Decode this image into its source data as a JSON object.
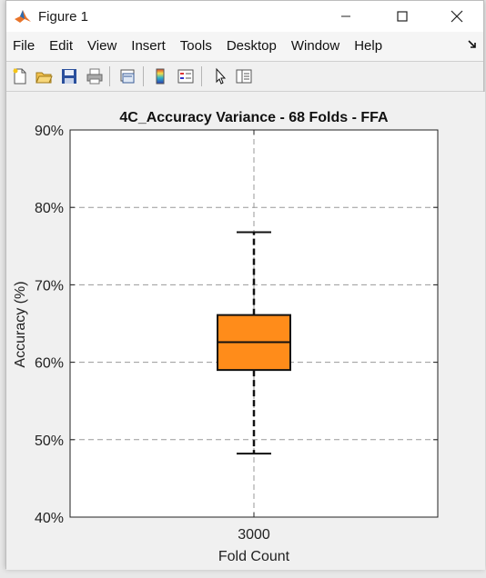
{
  "window": {
    "title": "Figure 1"
  },
  "menu": {
    "items": [
      "File",
      "Edit",
      "View",
      "Insert",
      "Tools",
      "Desktop",
      "Window",
      "Help"
    ]
  },
  "toolbar": {
    "icons": [
      "new-figure-icon",
      "open-folder-icon",
      "save-icon",
      "print-icon",
      "link-plot-icon",
      "colorbar-icon",
      "legend-icon",
      "pointer-icon",
      "property-editor-icon"
    ]
  },
  "colors": {
    "box_fill": "#ff8c1a",
    "grid": "#999999"
  },
  "chart_data": {
    "type": "box",
    "title": "4C_Accuracy Variance - 68 Folds - FFA",
    "xlabel": "Fold Count",
    "ylabel": "Accuracy (%)",
    "categories": [
      "3000"
    ],
    "ylim": [
      40,
      90
    ],
    "yticks": [
      40,
      50,
      60,
      70,
      80,
      90
    ],
    "ytick_labels": [
      "40%",
      "50%",
      "60%",
      "70%",
      "80%",
      "90%"
    ],
    "grid": true,
    "boxes": [
      {
        "category": "3000",
        "whisker_low": 48.2,
        "q1": 59.0,
        "median": 62.6,
        "q3": 66.1,
        "whisker_high": 76.8
      }
    ]
  }
}
